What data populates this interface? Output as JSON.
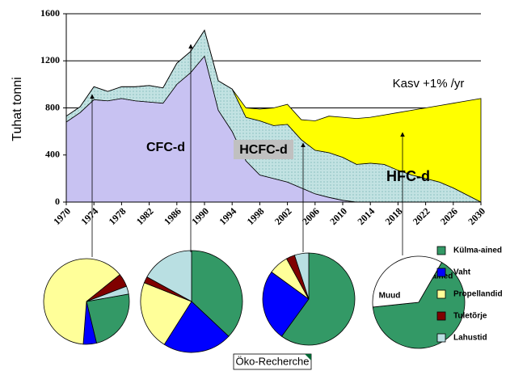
{
  "chart_data": [
    {
      "type": "area",
      "y_label": "Tuhat tonni",
      "annotation": "Kasv +1% /yr",
      "xlim": [
        1970,
        2030
      ],
      "xticks": [
        1970,
        1974,
        1978,
        1982,
        1986,
        1990,
        1994,
        1998,
        2002,
        2006,
        2010,
        2014,
        2018,
        2022,
        2026,
        2030
      ],
      "ylim": [
        0,
        1600
      ],
      "yticks": [
        0,
        400,
        800,
        1200,
        1600
      ],
      "grid": true,
      "x": [
        1970,
        1972,
        1974,
        1976,
        1978,
        1980,
        1982,
        1984,
        1986,
        1988,
        1990,
        1992,
        1994,
        1996,
        1998,
        2000,
        2002,
        2004,
        2006,
        2008,
        2010,
        2012,
        2014,
        2016,
        2018,
        2020,
        2022,
        2024,
        2026,
        2028,
        2030
      ],
      "series": [
        {
          "name": "CFC-d",
          "color": "#c8c2f2",
          "values": [
            680,
            760,
            870,
            860,
            880,
            860,
            850,
            840,
            1000,
            1100,
            1240,
            780,
            600,
            350,
            230,
            200,
            170,
            120,
            70,
            40,
            15,
            0,
            0,
            0,
            0,
            0,
            0,
            0,
            0,
            0,
            0
          ]
        },
        {
          "name": "HCFC-d",
          "color": "#c2e2e2",
          "values": [
            50,
            50,
            110,
            80,
            100,
            120,
            140,
            130,
            180,
            180,
            220,
            250,
            360,
            370,
            460,
            450,
            490,
            410,
            370,
            380,
            365,
            320,
            330,
            320,
            270,
            230,
            200,
            170,
            120,
            60,
            0
          ]
        },
        {
          "name": "HFC-d",
          "color": "#ffff00",
          "values": [
            0,
            0,
            0,
            0,
            0,
            0,
            0,
            0,
            0,
            0,
            0,
            0,
            0,
            80,
            100,
            150,
            170,
            170,
            250,
            310,
            340,
            390,
            390,
            420,
            490,
            550,
            600,
            650,
            720,
            800,
            880
          ]
        }
      ]
    },
    {
      "type": "pie",
      "startangle": 80,
      "categories": [
        "Külma-ained",
        "Vaht",
        "Propellandid",
        "Tuletõrje",
        "Lahustid"
      ],
      "colors": [
        "#339966",
        "#0000ff",
        "#ffff99",
        "#800000",
        "#b9dfe2"
      ],
      "values": [
        24,
        5,
        63,
        5,
        3
      ]
    },
    {
      "type": "pie",
      "startangle": 0,
      "categories": [
        "Külma-ained",
        "Vaht",
        "Propellandid",
        "Tuletõrje",
        "Lahustid"
      ],
      "colors": [
        "#339966",
        "#0000ff",
        "#ffff99",
        "#800000",
        "#b9dfe2"
      ],
      "values": [
        37,
        22,
        22,
        2,
        17
      ]
    },
    {
      "type": "pie",
      "startangle": 0,
      "categories": [
        "Külma-ained",
        "Vaht",
        "Propellandid",
        "Tuletõrje",
        "Lahustid"
      ],
      "colors": [
        "#339966",
        "#0000ff",
        "#ffff99",
        "#800000",
        "#b9dfe2"
      ],
      "values": [
        60,
        25,
        7,
        3,
        5
      ]
    },
    {
      "type": "pie",
      "startangle": 30,
      "categories": [
        "Külmaained",
        "Muud"
      ],
      "colors": [
        "#339966",
        "#ffffff"
      ],
      "values": [
        65,
        35
      ]
    }
  ],
  "footer": "Öko-Recherche"
}
